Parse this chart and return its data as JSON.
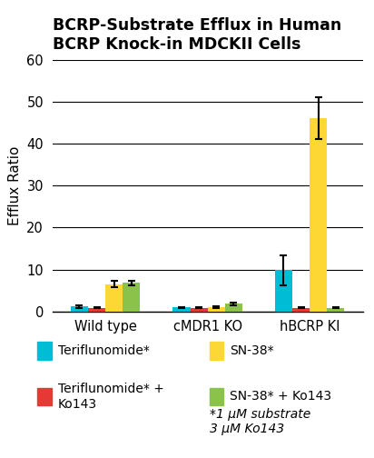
{
  "title": "BCRP-Substrate Efflux in Human\nBCRP Knock-in MDCKII Cells",
  "ylabel": "Efflux Ratio",
  "groups": [
    "Wild type",
    "cMDR1 KO",
    "hBCRP KI"
  ],
  "series": [
    "Teriflunomide*",
    "Teriflunomide* +\nKo143",
    "SN-38*",
    "SN-38* + Ko143"
  ],
  "colors": [
    "#00BCD4",
    "#E53935",
    "#FDD835",
    "#8BC34A"
  ],
  "values": [
    [
      1.2,
      0.9,
      6.5,
      6.8
    ],
    [
      1.0,
      0.9,
      1.0,
      1.8
    ],
    [
      9.8,
      0.9,
      46.0,
      0.9
    ]
  ],
  "errors": [
    [
      0.3,
      0.1,
      0.7,
      0.5
    ],
    [
      0.1,
      0.1,
      0.2,
      0.3
    ],
    [
      3.5,
      0.1,
      5.0,
      0.1
    ]
  ],
  "ylim": [
    0,
    60
  ],
  "yticks": [
    0,
    10,
    20,
    30,
    40,
    50,
    60
  ],
  "legend_labels": [
    "Teriflunomide*",
    "SN-38*",
    "Teriflunomide* +\nKo143",
    "SN-38* + Ko143"
  ],
  "legend_colors": [
    "#00BCD4",
    "#FDD835",
    "#E53935",
    "#8BC34A"
  ],
  "footnote": "*1 μM substrate\n3 μM Ko143",
  "bar_width": 0.17,
  "background_color": "#FFFFFF",
  "title_fontsize": 12.5,
  "axis_fontsize": 11,
  "tick_fontsize": 10.5,
  "legend_fontsize": 10
}
